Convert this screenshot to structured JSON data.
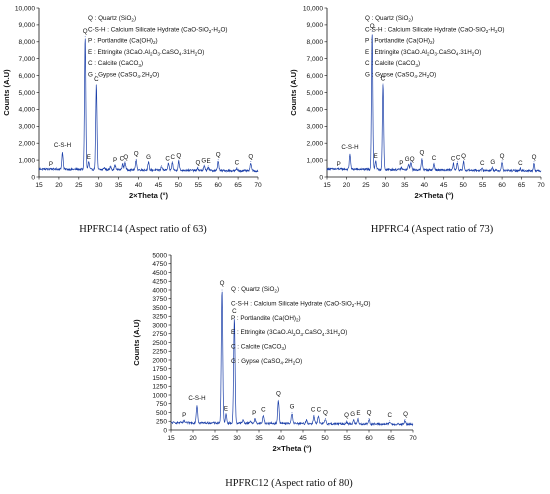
{
  "chart_data": [
    {
      "type": "line",
      "caption": "HPFRC14 (Aspect ratio of 63)",
      "xlabel": "2×Theta (°)",
      "ylabel": "Counts (A.U)",
      "xlim": [
        15,
        70
      ],
      "ylim": [
        0,
        10000
      ],
      "xticks": [
        15,
        20,
        25,
        30,
        35,
        40,
        45,
        50,
        55,
        60,
        65,
        70
      ],
      "yticks": [
        0,
        1000,
        2000,
        3000,
        4000,
        5000,
        6000,
        7000,
        8000,
        9000,
        10000
      ],
      "ytick_labels": [
        "0",
        "1,000",
        "2,000",
        "3,000",
        "4,000",
        "5,000",
        "6,000",
        "7,000",
        "8,000",
        "9,000",
        "10,000"
      ],
      "grid": false,
      "legend_position": "top-right",
      "legend": [
        "Q : Quartz (SiO₂)",
        "C-S-H : Calcium Silicate Hydrate (CaO-SiO₂-H₂O)",
        "P : Portlandite (Ca(OH)₂)",
        "E : Ettringite (3CaO.Al₂O₃.CaSO₄.31H₂O)",
        "C : Calcite (CaCO₃)",
        "G : Gypse (CaSO₄.2H₂O)"
      ],
      "baseline": 450,
      "peaks": [
        {
          "x": 18.0,
          "y": 480
        },
        {
          "x": 20.9,
          "y": 1450
        },
        {
          "x": 26.6,
          "y": 8300
        },
        {
          "x": 27.5,
          "y": 900
        },
        {
          "x": 29.4,
          "y": 5450
        },
        {
          "x": 31.4,
          "y": 560
        },
        {
          "x": 33.0,
          "y": 650
        },
        {
          "x": 34.1,
          "y": 720
        },
        {
          "x": 36.0,
          "y": 780
        },
        {
          "x": 36.6,
          "y": 900
        },
        {
          "x": 39.4,
          "y": 1050
        },
        {
          "x": 42.5,
          "y": 900
        },
        {
          "x": 45.8,
          "y": 680
        },
        {
          "x": 47.5,
          "y": 820
        },
        {
          "x": 48.5,
          "y": 900
        },
        {
          "x": 50.1,
          "y": 1000
        },
        {
          "x": 54.9,
          "y": 560
        },
        {
          "x": 56.5,
          "y": 700
        },
        {
          "x": 57.5,
          "y": 660
        },
        {
          "x": 60.0,
          "y": 1020
        },
        {
          "x": 64.7,
          "y": 560
        },
        {
          "x": 68.2,
          "y": 920
        }
      ],
      "labels": [
        {
          "text": "C-S-H",
          "x": 20.9,
          "y": 1650
        },
        {
          "text": "P",
          "x": 18.0,
          "y": 520
        },
        {
          "text": "Q",
          "x": 26.6,
          "y": 8400
        },
        {
          "text": "E",
          "x": 27.5,
          "y": 950
        },
        {
          "text": "C",
          "x": 29.4,
          "y": 5550
        },
        {
          "text": "P",
          "x": 34.1,
          "y": 760
        },
        {
          "text": "C",
          "x": 35.8,
          "y": 850
        },
        {
          "text": "Q",
          "x": 36.8,
          "y": 950
        },
        {
          "text": "Q",
          "x": 39.4,
          "y": 1150
        },
        {
          "text": "G",
          "x": 42.5,
          "y": 950
        },
        {
          "text": "C",
          "x": 47.3,
          "y": 870
        },
        {
          "text": "C",
          "x": 48.6,
          "y": 960
        },
        {
          "text": "Q",
          "x": 50.1,
          "y": 1050
        },
        {
          "text": "Q",
          "x": 54.9,
          "y": 620
        },
        {
          "text": "G",
          "x": 56.4,
          "y": 740
        },
        {
          "text": "E",
          "x": 57.6,
          "y": 720
        },
        {
          "text": "Q",
          "x": 60.0,
          "y": 1080
        },
        {
          "text": "C",
          "x": 64.7,
          "y": 620
        },
        {
          "text": "Q",
          "x": 68.2,
          "y": 980
        }
      ]
    },
    {
      "type": "line",
      "caption": "HPFRC4 (Aspect ratio of 73)",
      "xlabel": "2×Theta (°)",
      "ylabel": "Counts (A.U)",
      "xlim": [
        15,
        70
      ],
      "ylim": [
        0,
        10000
      ],
      "xticks": [
        15,
        20,
        25,
        30,
        35,
        40,
        45,
        50,
        55,
        60,
        65,
        70
      ],
      "yticks": [
        0,
        1000,
        2000,
        3000,
        4000,
        5000,
        6000,
        7000,
        8000,
        9000,
        10000
      ],
      "ytick_labels": [
        "0",
        "1,000",
        "2,000",
        "3,000",
        "4,000",
        "5,000",
        "6,000",
        "7,000",
        "8,000",
        "9,000",
        "10,000"
      ],
      "grid": false,
      "legend_position": "top-right",
      "legend": [
        "Q : Quartz (SiO₂)",
        "C-S-H : Calcium Silicate Hydrate (CaO-SiO₂-H₂O)",
        "P : Portlandite (Ca(OH)₂)",
        "E : Ettringite (3CaO.Al₂O₃.CaSO₄.31H₂O)",
        "C : Calcite (CaCO₃)",
        "G : Gypse (CaSO₄.2H₂O)"
      ],
      "baseline": 450,
      "peaks": [
        {
          "x": 18.0,
          "y": 480
        },
        {
          "x": 20.9,
          "y": 1350
        },
        {
          "x": 26.6,
          "y": 8600
        },
        {
          "x": 27.5,
          "y": 950
        },
        {
          "x": 29.4,
          "y": 5500
        },
        {
          "x": 34.1,
          "y": 560
        },
        {
          "x": 36.0,
          "y": 760
        },
        {
          "x": 36.6,
          "y": 900
        },
        {
          "x": 39.4,
          "y": 1100
        },
        {
          "x": 42.5,
          "y": 820
        },
        {
          "x": 47.5,
          "y": 820
        },
        {
          "x": 48.5,
          "y": 900
        },
        {
          "x": 50.1,
          "y": 950
        },
        {
          "x": 54.9,
          "y": 540
        },
        {
          "x": 57.5,
          "y": 600
        },
        {
          "x": 60.0,
          "y": 950
        },
        {
          "x": 64.7,
          "y": 560
        },
        {
          "x": 68.2,
          "y": 900
        }
      ],
      "labels": [
        {
          "text": "C-S-H",
          "x": 20.9,
          "y": 1550
        },
        {
          "text": "P",
          "x": 18.0,
          "y": 520
        },
        {
          "text": "Q",
          "x": 26.6,
          "y": 8700
        },
        {
          "text": "E",
          "x": 27.5,
          "y": 1000
        },
        {
          "text": "C",
          "x": 29.4,
          "y": 5600
        },
        {
          "text": "P",
          "x": 34.1,
          "y": 600
        },
        {
          "text": "G",
          "x": 35.6,
          "y": 820
        },
        {
          "text": "Q",
          "x": 36.9,
          "y": 820
        },
        {
          "text": "Q",
          "x": 39.4,
          "y": 1200
        },
        {
          "text": "C",
          "x": 42.5,
          "y": 880
        },
        {
          "text": "C",
          "x": 47.4,
          "y": 870
        },
        {
          "text": "C",
          "x": 48.7,
          "y": 920
        },
        {
          "text": "Q",
          "x": 50.1,
          "y": 1000
        },
        {
          "text": "C",
          "x": 54.9,
          "y": 580
        },
        {
          "text": "G",
          "x": 57.6,
          "y": 640
        },
        {
          "text": "Q",
          "x": 60.0,
          "y": 1000
        },
        {
          "text": "C",
          "x": 64.7,
          "y": 600
        },
        {
          "text": "Q",
          "x": 68.2,
          "y": 950
        }
      ]
    },
    {
      "type": "line",
      "caption": "HPFRC12 (Aspect ratio of 80)",
      "xlabel": "2×Theta (°)",
      "ylabel": "Counts (A.U)",
      "xlim": [
        15,
        70
      ],
      "ylim": [
        0,
        5000
      ],
      "xticks": [
        15,
        20,
        25,
        30,
        35,
        40,
        45,
        50,
        55,
        60,
        65,
        70
      ],
      "yticks": [
        0,
        250,
        500,
        750,
        1000,
        1250,
        1500,
        1750,
        2000,
        2250,
        2500,
        2750,
        3000,
        3250,
        3500,
        3750,
        4000,
        4250,
        4500,
        4750,
        5000
      ],
      "ytick_labels": [
        "0",
        "250",
        "500",
        "750",
        "1000",
        "1250",
        "1500",
        "1750",
        "2000",
        "2250",
        "2500",
        "2750",
        "3000",
        "3250",
        "3500",
        "3750",
        "4000",
        "4250",
        "4500",
        "4750",
        "5000"
      ],
      "grid": false,
      "legend_position": "top-right",
      "legend": [
        "Q : Quartz (SiO₂)",
        "C-S-H : Calcium Silicate Hydrate (CaO-SiO₂-H₂O)",
        "P : Portlandite (Ca(OH)₂)",
        "E : Ettringite (3CaO.Al₂O₃.CaSO₄.31H₂O)",
        "C : Calcite (CaCO₃)",
        "G : Gypse (CaSO₄.2H₂O)"
      ],
      "baseline": 200,
      "peaks": [
        {
          "x": 18.0,
          "y": 250
        },
        {
          "x": 20.9,
          "y": 700
        },
        {
          "x": 26.6,
          "y": 4000
        },
        {
          "x": 27.5,
          "y": 450
        },
        {
          "x": 29.4,
          "y": 3200
        },
        {
          "x": 31.4,
          "y": 280
        },
        {
          "x": 33.0,
          "y": 260
        },
        {
          "x": 34.1,
          "y": 320
        },
        {
          "x": 36.0,
          "y": 420
        },
        {
          "x": 39.4,
          "y": 850
        },
        {
          "x": 42.5,
          "y": 500
        },
        {
          "x": 45.8,
          "y": 300
        },
        {
          "x": 47.5,
          "y": 420
        },
        {
          "x": 48.5,
          "y": 400
        },
        {
          "x": 50.1,
          "y": 330
        },
        {
          "x": 54.9,
          "y": 260
        },
        {
          "x": 56.5,
          "y": 300
        },
        {
          "x": 57.5,
          "y": 330
        },
        {
          "x": 60.0,
          "y": 330
        },
        {
          "x": 64.7,
          "y": 260
        },
        {
          "x": 68.2,
          "y": 300
        }
      ],
      "labels": [
        {
          "text": "C-S-H",
          "x": 20.9,
          "y": 800
        },
        {
          "text": "P",
          "x": 18.0,
          "y": 320
        },
        {
          "text": "Q",
          "x": 26.6,
          "y": 4080
        },
        {
          "text": "E",
          "x": 27.5,
          "y": 500
        },
        {
          "text": "C",
          "x": 29.4,
          "y": 3280
        },
        {
          "text": "P",
          "x": 33.9,
          "y": 370
        },
        {
          "text": "C",
          "x": 36.0,
          "y": 470
        },
        {
          "text": "Q",
          "x": 39.4,
          "y": 930
        },
        {
          "text": "G",
          "x": 42.5,
          "y": 560
        },
        {
          "text": "C",
          "x": 47.3,
          "y": 470
        },
        {
          "text": "C",
          "x": 48.6,
          "y": 470
        },
        {
          "text": "Q",
          "x": 50.1,
          "y": 380
        },
        {
          "text": "Q",
          "x": 54.9,
          "y": 320
        },
        {
          "text": "G",
          "x": 56.3,
          "y": 340
        },
        {
          "text": "E",
          "x": 57.6,
          "y": 370
        },
        {
          "text": "Q",
          "x": 60.0,
          "y": 380
        },
        {
          "text": "C",
          "x": 64.7,
          "y": 310
        },
        {
          "text": "Q",
          "x": 68.3,
          "y": 350
        }
      ]
    }
  ],
  "colors": {
    "trace": "#1a3ea8",
    "axis": "#111111",
    "text": "#111111"
  }
}
